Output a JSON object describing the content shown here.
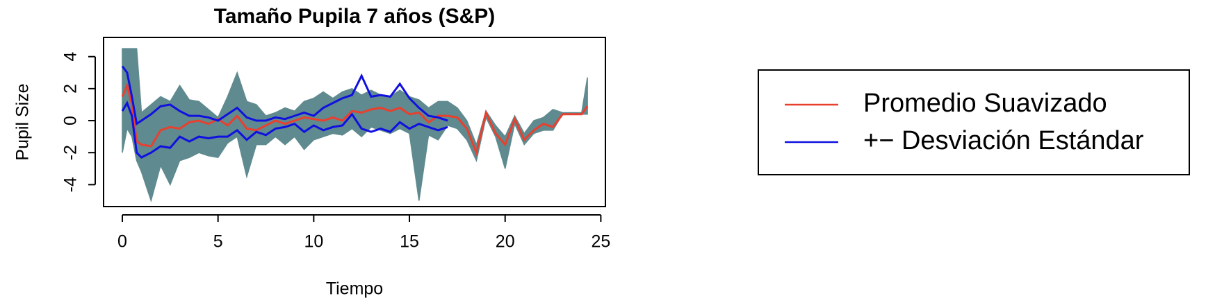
{
  "chart_data": {
    "type": "line",
    "title": "Tamaño Pupila 7 años (S&P)",
    "x_label": "Tiempo",
    "y_label": "Pupil Size",
    "x": [
      0,
      0.25,
      0.5,
      0.75,
      1,
      1.5,
      2,
      2.5,
      3,
      3.5,
      4,
      4.5,
      5,
      5.5,
      6,
      6.5,
      7,
      7.5,
      8,
      8.5,
      9,
      9.5,
      10,
      10.5,
      11,
      11.5,
      12,
      12.5,
      13,
      13.5,
      14,
      14.5,
      15,
      15.5,
      16,
      16.5,
      17,
      17.5,
      18,
      18.5,
      19,
      19.5,
      20,
      20.5,
      21,
      21.5,
      22,
      22.5,
      23,
      23.5,
      24,
      24.3
    ],
    "band": {
      "color": "#5f8a8f",
      "upper": [
        4.5,
        4.5,
        4.5,
        4.5,
        0.5,
        1.0,
        1.5,
        1.2,
        2.2,
        1.3,
        1.2,
        0.7,
        0.2,
        1.5,
        3.0,
        1.2,
        1.0,
        0.3,
        0.5,
        0.8,
        0.6,
        1.2,
        1.4,
        1.8,
        1.4,
        1.8,
        2.0,
        1.6,
        1.9,
        1.6,
        1.5,
        1.9,
        1.5,
        1.3,
        0.8,
        1.2,
        1.2,
        0.8,
        0.0,
        -1.5,
        0.6,
        -0.3,
        -1.0,
        0.3,
        -0.8,
        0.0,
        0.2,
        0.7,
        0.5,
        0.5,
        0.5,
        2.7
      ],
      "lower": [
        -2.0,
        -0.5,
        -1.0,
        -2.5,
        -3.2,
        -5.0,
        -2.8,
        -4.0,
        -2.5,
        -2.3,
        -2.0,
        -2.2,
        -2.3,
        -1.4,
        -1.0,
        -3.5,
        -1.5,
        -1.5,
        -1.0,
        -1.5,
        -1.0,
        -1.8,
        -1.2,
        -1.0,
        -0.8,
        -0.9,
        -0.5,
        -1.0,
        -0.4,
        -0.6,
        -0.8,
        -0.5,
        -0.8,
        -5.0,
        -0.9,
        -1.2,
        -0.3,
        -0.5,
        -1.2,
        -2.5,
        0.2,
        -1.0,
        -3.0,
        -0.2,
        -1.5,
        -0.8,
        -0.6,
        -0.6,
        0.4,
        0.4,
        0.4,
        0.4
      ]
    },
    "series": [
      {
        "name": "Promedio Suavizado",
        "color": "#e8402f",
        "values": [
          1.5,
          2.2,
          1.0,
          -1.3,
          -1.5,
          -1.6,
          -0.6,
          -0.4,
          -0.5,
          -0.1,
          0,
          -0.2,
          0.1,
          -0.3,
          0.3,
          -0.5,
          -0.6,
          -0.3,
          0,
          -0.2,
          0,
          0.2,
          0.1,
          0,
          0.2,
          0,
          0.6,
          0.5,
          0.7,
          0.8,
          0.6,
          0.8,
          0.4,
          0.5,
          -0.1,
          0.3,
          0.3,
          0.2,
          -0.5,
          -2.0,
          0.5,
          -0.8,
          -1.5,
          0.1,
          -1.2,
          -0.6,
          -0.2,
          -0.4,
          0.4,
          0.4,
          0.4,
          0.9
        ]
      },
      {
        "name": "+− Desviación Estándar",
        "color": "#1010e0",
        "upper": [
          3.4,
          3.0,
          1.5,
          -0.2,
          0.0,
          0.4,
          0.9,
          1.0,
          0.6,
          0.3,
          0.3,
          0.2,
          0.0,
          0.4,
          0.8,
          0.2,
          0.0,
          0.0,
          0.2,
          0.1,
          0.3,
          0.5,
          0.3,
          0.8,
          1.1,
          1.4,
          1.6,
          2.8,
          1.5,
          1.6,
          1.5,
          2.3,
          1.4,
          0.8,
          0.3,
          0.2,
          0.0,
          null,
          null,
          null,
          null,
          null,
          null,
          null,
          null,
          null,
          null,
          null,
          null,
          null,
          null,
          null
        ],
        "lower": [
          0.6,
          1.1,
          0.3,
          -2.0,
          -2.3,
          -2.0,
          -1.6,
          -1.7,
          -1.0,
          -1.3,
          -1.0,
          -1.1,
          -1.0,
          -1.0,
          -0.6,
          -1.2,
          -0.7,
          -0.9,
          -0.5,
          -0.4,
          -0.2,
          -0.7,
          -0.3,
          -0.6,
          -0.4,
          -0.3,
          0.4,
          -0.5,
          -0.7,
          -0.5,
          -0.7,
          -0.1,
          -0.5,
          -0.2,
          -0.4,
          -0.6,
          -0.4,
          null,
          null,
          null,
          null,
          null,
          null,
          null,
          null,
          null,
          null,
          null,
          null,
          null,
          null,
          null
        ]
      }
    ],
    "xlim": [
      -0.98,
      25.24
    ],
    "ylim": [
      -5.37,
      5.2
    ],
    "xticks": [
      0,
      5,
      10,
      15,
      20,
      25
    ],
    "yticks": [
      -4,
      -2,
      0,
      2,
      4
    ],
    "grid": false,
    "legend": "right"
  }
}
